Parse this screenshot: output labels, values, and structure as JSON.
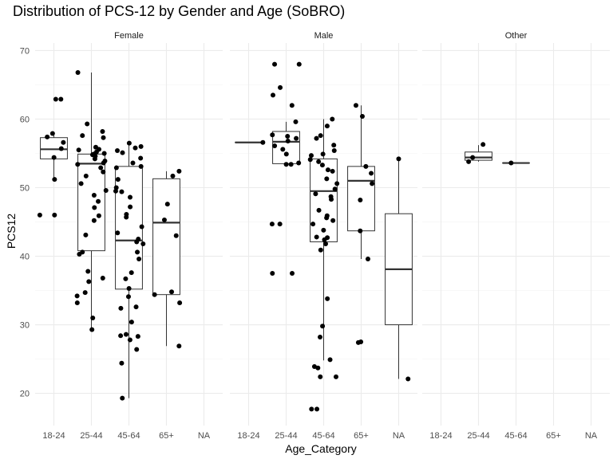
{
  "chart_data": {
    "type": "boxplot",
    "title": "Distribution of PCS-12 by Gender and Age (SoBRO)",
    "xlabel": "Age_Category",
    "ylabel": "PCS12",
    "ylim": [
      15.3,
      71.1
    ],
    "y_ticks": [
      20,
      30,
      40,
      50,
      60,
      70
    ],
    "categories": [
      "18-24",
      "25-44",
      "45-64",
      "65+",
      "NA"
    ],
    "grid": true,
    "facets": [
      {
        "name": "Female",
        "boxes": [
          {
            "category": "18-24",
            "min": 51.2,
            "q1": 54.2,
            "median": 55.6,
            "q3": 57.3,
            "max": 58.0
          },
          {
            "category": "25-44",
            "min": 29.3,
            "q1": 40.8,
            "median": 53.5,
            "q3": 54.9,
            "max": 66.8
          },
          {
            "category": "45-64",
            "min": 19.3,
            "q1": 35.2,
            "median": 42.3,
            "q3": 53.1,
            "max": 56.3
          },
          {
            "category": "65+",
            "min": 26.9,
            "q1": 34.4,
            "median": 44.9,
            "q3": 51.3,
            "max": 52.4
          }
        ],
        "points": [
          {
            "category": "18-24",
            "values": [
              62.9,
              62.9,
              57.9,
              57.4,
              56.6,
              55.7,
              54.4,
              51.2,
              46.0,
              46.0
            ]
          },
          {
            "category": "25-44",
            "values": [
              66.8,
              59.3,
              58.2,
              57.6,
              57.3,
              55.9,
              55.6,
              55.5,
              55.2,
              55.0,
              54.9,
              54.8,
              54.6,
              54.2,
              53.9,
              53.6,
              53.4,
              52.9,
              52.3,
              51.7,
              50.6,
              49.6,
              48.9,
              48.0,
              47.1,
              45.9,
              45.2,
              43.1,
              40.6,
              40.3,
              37.8,
              36.8,
              36.3,
              34.7,
              34.2,
              33.2,
              31.0,
              29.3
            ]
          },
          {
            "category": "45-64",
            "values": [
              56.5,
              56.0,
              55.8,
              55.4,
              55.1,
              54.3,
              53.6,
              53.1,
              52.9,
              51.2,
              50.0,
              49.5,
              49.4,
              48.6,
              47.2,
              46.1,
              45.7,
              44.3,
              43.4,
              42.5,
              42.1,
              41.8,
              40.6,
              39.6,
              37.6,
              36.7,
              35.3,
              34.1,
              32.6,
              32.4,
              30.4,
              28.6,
              28.4,
              28.3,
              27.8,
              26.4,
              24.4,
              19.3
            ]
          },
          {
            "category": "65+",
            "values": [
              52.4,
              51.7,
              47.6,
              45.3,
              43.0,
              34.8,
              34.4,
              33.2,
              26.9
            ]
          }
        ]
      },
      {
        "name": "Male",
        "boxes": [
          {
            "category": "18-24",
            "min": 56.6,
            "q1": 56.6,
            "median": 56.6,
            "q3": 56.6,
            "max": 56.6
          },
          {
            "category": "25-44",
            "min": 53.4,
            "q1": 53.5,
            "median": 56.7,
            "q3": 58.2,
            "max": 59.6
          },
          {
            "category": "45-64",
            "min": 24.8,
            "q1": 42.1,
            "median": 49.5,
            "q3": 54.2,
            "max": 60.0
          },
          {
            "category": "65+",
            "min": 39.6,
            "q1": 43.7,
            "median": 51.0,
            "q3": 53.1,
            "max": 62.0
          },
          {
            "category": "NA",
            "min": 22.1,
            "q1": 30.0,
            "median": 38.1,
            "q3": 46.2,
            "max": 54.2
          }
        ],
        "points": [
          {
            "category": "18-24",
            "values": [
              56.6
            ]
          },
          {
            "category": "25-44",
            "values": [
              68.0,
              68.0,
              64.6,
              63.5,
              62.0,
              59.6,
              57.7,
              57.5,
              57.2,
              56.8,
              56.1,
              55.6,
              54.9,
              53.6,
              53.4,
              53.4,
              44.7,
              44.7,
              37.5,
              37.5
            ]
          },
          {
            "category": "45-64",
            "values": [
              60.0,
              59.0,
              57.6,
              57.2,
              56.2,
              55.4,
              54.9,
              54.7,
              54.1,
              53.8,
              53.3,
              52.6,
              52.4,
              51.3,
              50.6,
              49.8,
              49.1,
              48.7,
              48.3,
              46.7,
              45.9,
              45.6,
              45.2,
              44.7,
              43.8,
              42.8,
              42.7,
              42.4,
              41.8,
              40.9,
              33.8,
              29.8,
              28.2,
              24.9,
              23.9,
              23.7,
              22.4,
              22.4,
              17.7,
              17.7
            ]
          },
          {
            "category": "65+",
            "values": [
              62.0,
              60.4,
              53.1,
              52.1,
              50.6,
              48.2,
              43.7,
              39.6,
              27.5,
              27.4
            ]
          },
          {
            "category": "NA",
            "values": [
              54.2,
              22.1
            ]
          }
        ]
      },
      {
        "name": "Other",
        "boxes": [
          {
            "category": "25-44",
            "min": 53.8,
            "q1": 54.0,
            "median": 54.4,
            "q3": 55.2,
            "max": 56.2
          },
          {
            "category": "45-64",
            "min": 53.6,
            "q1": 53.6,
            "median": 53.6,
            "q3": 53.6,
            "max": 53.6
          }
        ],
        "points": [
          {
            "category": "25-44",
            "values": [
              56.3,
              54.4,
              53.8
            ]
          },
          {
            "category": "45-64",
            "values": [
              53.6
            ]
          }
        ]
      }
    ]
  }
}
